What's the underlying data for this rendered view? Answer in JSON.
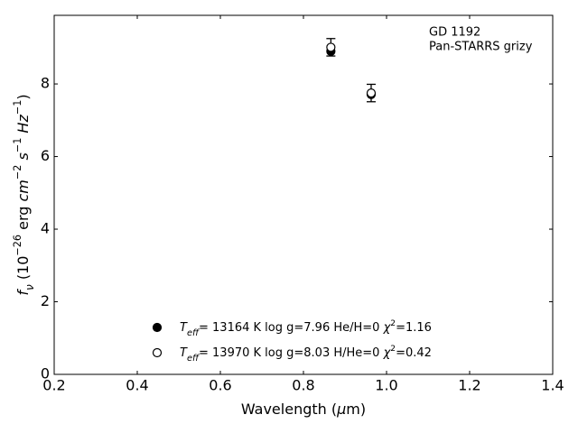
{
  "chart_data": {
    "type": "scatter",
    "annotations": [
      "GD 1192",
      "Pan-STARRS grizy"
    ],
    "xlabel": "Wavelength (μm)",
    "ylabel": "fν (10−26 erg cm−2 s−1 Hz−1)",
    "x": [
      0.866,
      0.963
    ],
    "series": [
      {
        "name": "Teff= 13164 K  log g=7.96  He/H=0  χ2=1.16",
        "color": "#000000",
        "filled": true,
        "values": [
          8.9,
          7.71
        ]
      },
      {
        "name": "Teff= 13970 K  log g=8.03  H/He=0  χ2=0.42",
        "color": "#000000",
        "filled": false,
        "values": [
          9.01,
          7.75
        ],
        "errors": [
          0.24,
          0.24
        ]
      }
    ],
    "xlim": [
      0.2,
      1.4
    ],
    "xticks": [
      0.2,
      0.4,
      0.6,
      0.8,
      {
        "value": 1,
        "label": "1.0"
      },
      1.2,
      1.4
    ],
    "ylim": [
      0,
      9.89
    ],
    "yticks": [
      0,
      2,
      4,
      6,
      8
    ],
    "grid": false
  }
}
